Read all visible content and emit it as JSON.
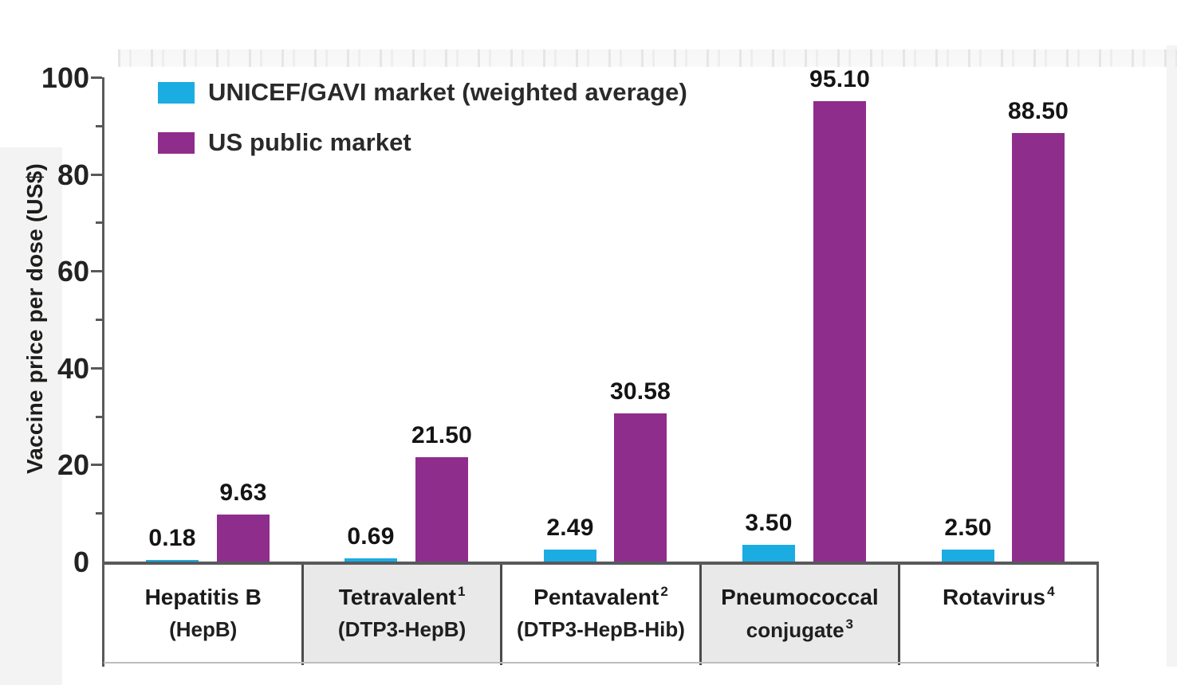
{
  "chart_data": {
    "type": "bar",
    "title": "",
    "xlabel": "",
    "ylabel": "Vaccine price per dose (US$)",
    "ylim": [
      0,
      100
    ],
    "yticks": [
      0,
      20,
      40,
      60,
      80,
      100
    ],
    "minor_tick_step": 10,
    "grid": false,
    "legend_position": "top-left",
    "categories": [
      {
        "line1": "Hepatitis B",
        "sup1": "",
        "line2": "(HepB)",
        "sup2": "",
        "shaded": false
      },
      {
        "line1": "Tetravalent",
        "sup1": "1",
        "line2": "(DTP3-HepB)",
        "sup2": "",
        "shaded": true
      },
      {
        "line1": "Pentavalent",
        "sup1": "2",
        "line2": "(DTP3-HepB-Hib)",
        "sup2": "",
        "shaded": false
      },
      {
        "line1": "Pneumococcal",
        "sup1": "",
        "line2": "conjugate",
        "sup2": "3",
        "shaded": true
      },
      {
        "line1": "Rotavirus",
        "sup1": "4",
        "line2": "",
        "sup2": "",
        "shaded": false
      }
    ],
    "series": [
      {
        "name": "UNICEF/GAVI market (weighted average)",
        "color": "#1BACE2",
        "values": [
          0.18,
          0.69,
          2.49,
          3.5,
          2.5
        ],
        "labels": [
          "0.18",
          "0.69",
          "2.49",
          "3.50",
          "2.50"
        ]
      },
      {
        "name": "US public market",
        "color": "#8F2D8C",
        "values": [
          9.63,
          21.5,
          30.58,
          95.1,
          88.5
        ],
        "labels": [
          "9.63",
          "21.50",
          "30.58",
          "95.10",
          "88.50"
        ]
      }
    ]
  },
  "colors": {
    "axis": "#58595b",
    "separator": "#4b4b4d",
    "shaded_cell": "#e9e9e9",
    "text": "#1d1d1b",
    "unicef_blue": "#1BACE2",
    "us_purple": "#8F2D8C"
  }
}
